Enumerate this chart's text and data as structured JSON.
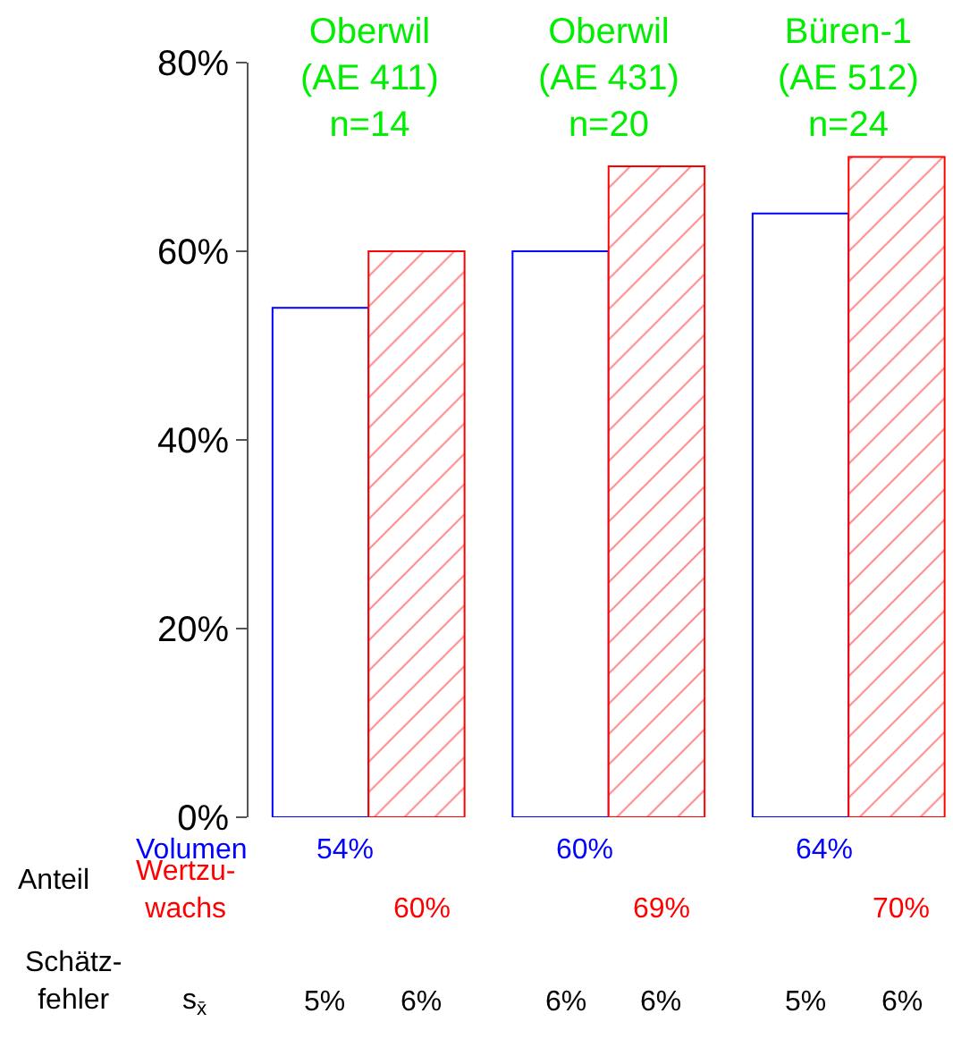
{
  "chart_data": {
    "type": "bar",
    "categories": [
      "Oberwil\n(AE 411)\nn=14",
      "Oberwil\n(AE 431)\nn=20",
      "Büren-1\n(AE 512)\nn=24"
    ],
    "series": [
      {
        "name": "Volumen",
        "color": "#0000ff",
        "values": [
          54,
          60,
          64
        ],
        "value_labels": [
          "54%",
          "60%",
          "64%"
        ]
      },
      {
        "name": "Wertzu-\nwachs",
        "color": "#ff0000",
        "values": [
          60,
          69,
          70
        ],
        "value_labels": [
          "60%",
          "69%",
          "70%"
        ]
      }
    ],
    "ylim": [
      0,
      80
    ],
    "yticks": [
      {
        "value": 0,
        "label": "0%"
      },
      {
        "value": 20,
        "label": "20%"
      },
      {
        "value": 40,
        "label": "40%"
      },
      {
        "value": 60,
        "label": "60%"
      },
      {
        "value": 80,
        "label": "80%"
      }
    ],
    "annotations": [
      "Anteil",
      "Schätz-\nfehler",
      "s$_{x̄}$",
      "5%",
      "6%",
      "6%",
      "6%",
      "5%",
      "6%"
    ]
  }
}
